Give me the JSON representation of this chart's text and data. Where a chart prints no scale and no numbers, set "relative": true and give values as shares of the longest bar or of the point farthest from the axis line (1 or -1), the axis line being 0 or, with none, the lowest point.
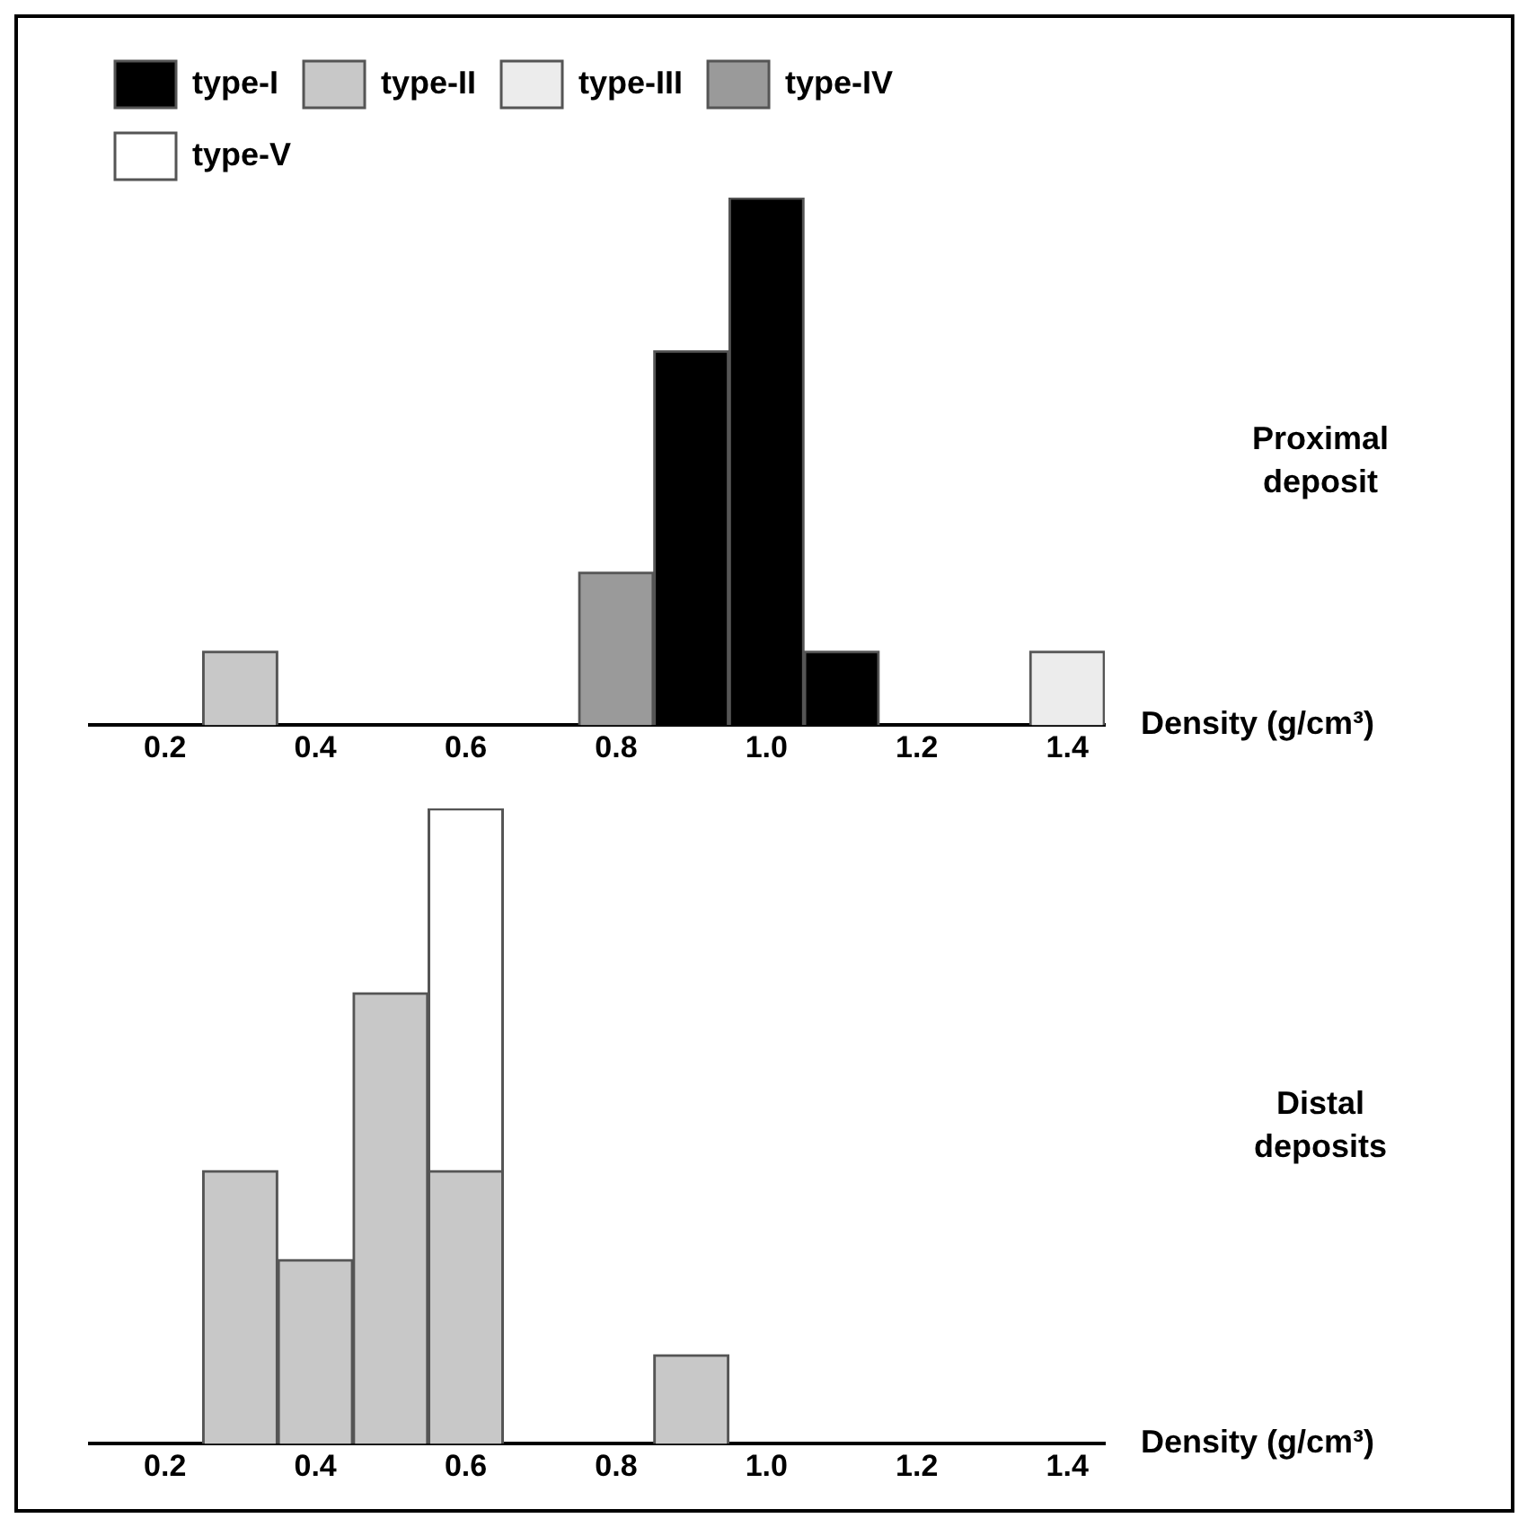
{
  "chart_data": [
    {
      "type": "bar",
      "stacked": true,
      "relative": true,
      "legend": "top",
      "x": [
        0.3,
        0.8,
        0.9,
        1.0,
        1.1,
        1.4
      ],
      "xlim": [
        0.1,
        1.45
      ],
      "xticks": [
        0.2,
        0.4,
        0.6,
        0.8,
        {
          "value": 1,
          "label": "1.0"
        },
        1.2,
        1.4
      ],
      "xlabel": "Density (g/cm³)",
      "annotations": [
        "Proximal deposit"
      ],
      "series": [
        {
          "name": "type-I",
          "color": "#000000",
          "values": [
            null,
            null,
            0.71,
            1,
            0.14,
            null
          ]
        },
        {
          "name": "type-II",
          "color": "#c8c8c8",
          "values": [
            0.14,
            null,
            null,
            null,
            null,
            null
          ]
        },
        {
          "name": "type-III",
          "color": "#ececec",
          "values": [
            null,
            null,
            null,
            null,
            null,
            0.14
          ]
        },
        {
          "name": "type-IV",
          "color": "#9a9a9a",
          "values": [
            null,
            0.29,
            null,
            null,
            null,
            null
          ]
        },
        {
          "name": "type-V",
          "color": "#ffffff",
          "values": [
            null,
            null,
            null,
            null,
            null,
            null
          ]
        }
      ]
    },
    {
      "type": "bar",
      "stacked": true,
      "relative": true,
      "x": [
        0.3,
        0.4,
        0.5,
        0.6,
        0.9
      ],
      "xlim": [
        0.1,
        1.45
      ],
      "xticks": [
        0.2,
        0.4,
        0.6,
        0.8,
        {
          "value": 1,
          "label": "1.0"
        },
        1.2,
        1.4
      ],
      "xlabel": "Density (g/cm³)",
      "annotations": [
        "Distal deposits"
      ],
      "series": [
        {
          "color": "#c8c8c8",
          "values": [
            0.43,
            0.29,
            0.71,
            0.43,
            0.14
          ]
        },
        {
          "color": "#ffffff",
          "values": [
            null,
            null,
            null,
            0.57,
            null
          ]
        }
      ]
    }
  ]
}
